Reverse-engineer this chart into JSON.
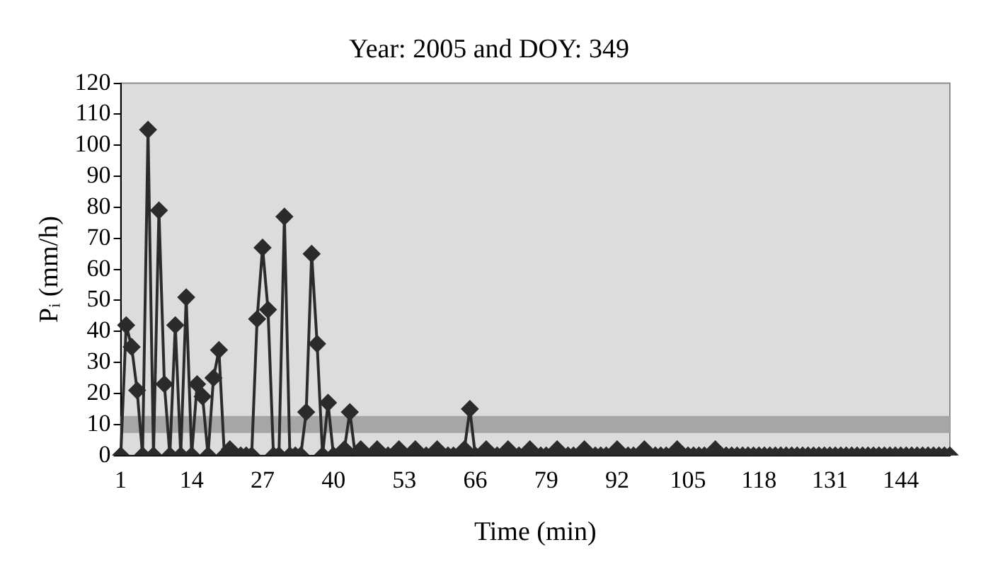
{
  "chart_data": {
    "type": "line",
    "title": "Year: 2005 and DOY: 349",
    "xlabel": "Time (min)",
    "ylabel": "Pᵢ (mm/h)",
    "categories": [
      "1",
      null,
      null,
      null,
      null,
      null,
      null,
      null,
      null,
      null,
      null,
      null,
      null,
      "14",
      null,
      null,
      null,
      null,
      null,
      null,
      null,
      null,
      null,
      null,
      null,
      null,
      "27",
      null,
      null,
      null,
      null,
      null,
      null,
      null,
      null,
      null,
      null,
      null,
      null,
      "40",
      null,
      null,
      null,
      null,
      null,
      null,
      null,
      null,
      null,
      null,
      null,
      null,
      "53",
      null,
      null,
      null,
      null,
      null,
      null,
      null,
      null,
      null,
      null,
      null,
      null,
      "66",
      null,
      null,
      null,
      null,
      null,
      null,
      null,
      null,
      null,
      null,
      null,
      null,
      "79",
      null,
      null,
      null,
      null,
      null,
      null,
      null,
      null,
      null,
      null,
      null,
      null,
      "92",
      null,
      null,
      null,
      null,
      null,
      null,
      null,
      null,
      null,
      null,
      null,
      null,
      "105",
      null,
      null,
      null,
      null,
      null,
      null,
      null,
      null,
      null,
      null,
      null,
      null,
      "118",
      null,
      null,
      null,
      null,
      null,
      null,
      null,
      null,
      null,
      null,
      null,
      null,
      "131",
      null,
      null,
      null,
      null,
      null,
      null,
      null,
      null,
      null,
      null,
      null,
      null,
      "144",
      null,
      null,
      null,
      null,
      null,
      null,
      null,
      null,
      null
    ],
    "series": [
      {
        "color": "#2b2b2b",
        "values": [
          0,
          42,
          35,
          21,
          0,
          105,
          0,
          79,
          23,
          0,
          42,
          0,
          51,
          0,
          23,
          19,
          0,
          25,
          34,
          0,
          2,
          0,
          0,
          0,
          0,
          44,
          67,
          47,
          0,
          0,
          77,
          0,
          0,
          0,
          14,
          65,
          36,
          0,
          17,
          0,
          0,
          2,
          14,
          0,
          2,
          0,
          0,
          2,
          0,
          0,
          0,
          2,
          0,
          0,
          2,
          0,
          0,
          0,
          2,
          0,
          0,
          0,
          0,
          2,
          15,
          0,
          0,
          2,
          0,
          0,
          0,
          2,
          0,
          0,
          0,
          2,
          0,
          0,
          0,
          0,
          2,
          0,
          0,
          0,
          0,
          2,
          0,
          0,
          0,
          0,
          0,
          2,
          0,
          0,
          0,
          0,
          2,
          0,
          0,
          0,
          0,
          0,
          2,
          0,
          0,
          0,
          0,
          0,
          0,
          2,
          0,
          0,
          0,
          0,
          0,
          0,
          0,
          0,
          0,
          0,
          0,
          0,
          0,
          0,
          0,
          0,
          0,
          0,
          0,
          0,
          0,
          0,
          0,
          0,
          0,
          0,
          0,
          0,
          0,
          0,
          0,
          0,
          0,
          0,
          0,
          0,
          0,
          0,
          0,
          0,
          0,
          0,
          0
        ]
      }
    ],
    "ylim": [
      0,
      120
    ],
    "yticks": [
      0,
      10,
      20,
      30,
      40,
      50,
      60,
      70,
      80,
      90,
      100,
      110,
      120
    ],
    "ref_lines": [
      {
        "axis": "y",
        "value": 10,
        "color": "#a6a6a6"
      }
    ],
    "grid": false,
    "legend": false,
    "marker": "diamond",
    "line_style": "solid"
  }
}
